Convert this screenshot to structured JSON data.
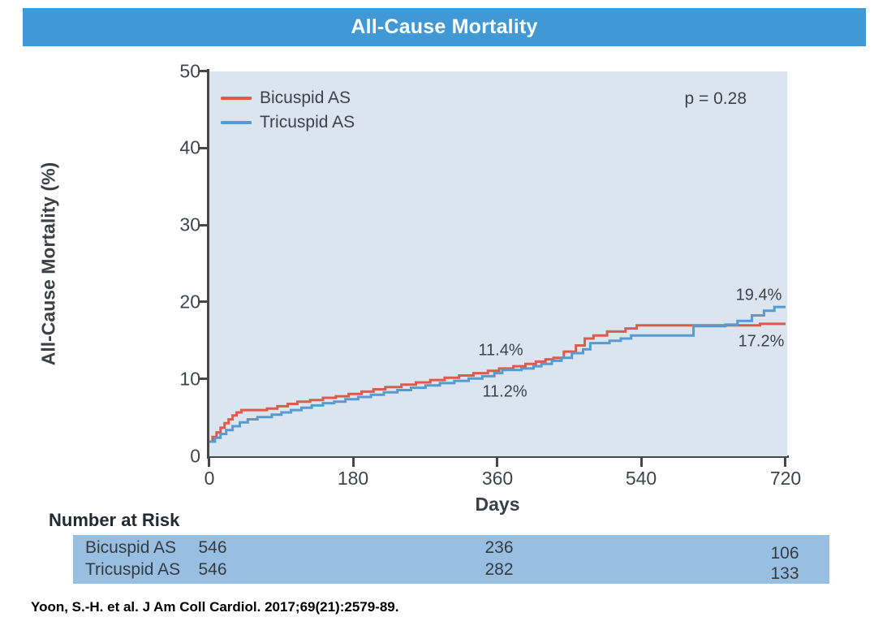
{
  "header": {
    "title": "All-Cause Mortality",
    "bg_color": "#4099d4"
  },
  "chart_data": {
    "type": "line",
    "subtype": "kaplan-meier-step",
    "title": "All-Cause Mortality",
    "xlabel": "Days",
    "ylabel": "All-Cause Mortality (%)",
    "xlim": [
      0,
      720
    ],
    "ylim": [
      0,
      50
    ],
    "x_ticks": [
      0,
      180,
      360,
      540,
      720
    ],
    "y_ticks": [
      0,
      10,
      20,
      30,
      40,
      50
    ],
    "grid": false,
    "legend_position": "top-left",
    "plot_bg_color": "#dbe5ef",
    "p_value_label": "p = 0.28",
    "series": [
      {
        "name": "Bicuspid AS",
        "color": "#e2594c",
        "points": [
          [
            0,
            1.9
          ],
          [
            4,
            2.5
          ],
          [
            9,
            3.1
          ],
          [
            14,
            3.7
          ],
          [
            19,
            4.3
          ],
          [
            24,
            4.8
          ],
          [
            29,
            5.3
          ],
          [
            34,
            5.7
          ],
          [
            40,
            6.0
          ],
          [
            72,
            6.2
          ],
          [
            85,
            6.5
          ],
          [
            98,
            6.8
          ],
          [
            110,
            7.1
          ],
          [
            126,
            7.3
          ],
          [
            142,
            7.6
          ],
          [
            158,
            7.8
          ],
          [
            174,
            8.1
          ],
          [
            190,
            8.4
          ],
          [
            205,
            8.7
          ],
          [
            220,
            9.0
          ],
          [
            240,
            9.3
          ],
          [
            258,
            9.6
          ],
          [
            276,
            9.9
          ],
          [
            294,
            10.2
          ],
          [
            312,
            10.5
          ],
          [
            330,
            10.8
          ],
          [
            348,
            11.1
          ],
          [
            362,
            11.4
          ],
          [
            380,
            11.7
          ],
          [
            395,
            12.0
          ],
          [
            408,
            12.3
          ],
          [
            420,
            12.6
          ],
          [
            430,
            12.8
          ],
          [
            443,
            13.6
          ],
          [
            458,
            14.4
          ],
          [
            469,
            15.3
          ],
          [
            480,
            15.7
          ],
          [
            497,
            16.2
          ],
          [
            520,
            16.6
          ],
          [
            534,
            17.0
          ],
          [
            688,
            17.2
          ],
          [
            720,
            17.2
          ]
        ]
      },
      {
        "name": "Tricuspid AS",
        "color": "#579ace",
        "points": [
          [
            0,
            1.9
          ],
          [
            7,
            2.4
          ],
          [
            14,
            2.9
          ],
          [
            21,
            3.4
          ],
          [
            29,
            3.9
          ],
          [
            38,
            4.4
          ],
          [
            48,
            4.8
          ],
          [
            60,
            5.1
          ],
          [
            78,
            5.4
          ],
          [
            90,
            5.7
          ],
          [
            102,
            6.0
          ],
          [
            115,
            6.3
          ],
          [
            128,
            6.6
          ],
          [
            142,
            6.9
          ],
          [
            156,
            7.1
          ],
          [
            170,
            7.4
          ],
          [
            186,
            7.7
          ],
          [
            202,
            8.0
          ],
          [
            218,
            8.3
          ],
          [
            235,
            8.6
          ],
          [
            252,
            8.9
          ],
          [
            270,
            9.2
          ],
          [
            288,
            9.5
          ],
          [
            306,
            9.8
          ],
          [
            324,
            10.1
          ],
          [
            341,
            10.4
          ],
          [
            356,
            10.8
          ],
          [
            366,
            11.2
          ],
          [
            390,
            11.4
          ],
          [
            405,
            11.7
          ],
          [
            415,
            12.0
          ],
          [
            428,
            12.4
          ],
          [
            440,
            12.8
          ],
          [
            453,
            13.4
          ],
          [
            467,
            13.9
          ],
          [
            476,
            14.7
          ],
          [
            500,
            15.0
          ],
          [
            514,
            15.3
          ],
          [
            527,
            15.7
          ],
          [
            605,
            16.9
          ],
          [
            645,
            17.1
          ],
          [
            660,
            17.6
          ],
          [
            678,
            18.3
          ],
          [
            693,
            18.9
          ],
          [
            706,
            19.4
          ],
          [
            720,
            19.4
          ]
        ]
      }
    ],
    "annotations": [
      {
        "text": "11.4%",
        "series": "Bicuspid AS",
        "day": 360
      },
      {
        "text": "11.2%",
        "series": "Tricuspid AS",
        "day": 360
      },
      {
        "text": "19.4%",
        "series": "Tricuspid AS",
        "day": 720
      },
      {
        "text": "17.2%",
        "series": "Bicuspid AS",
        "day": 720
      }
    ]
  },
  "risk_table": {
    "heading": "Number at Risk",
    "band_color": "#98bfe2",
    "columns_days": [
      0,
      360,
      720
    ],
    "rows": [
      {
        "label": "Bicuspid AS",
        "values": [
          "546",
          "236",
          "106"
        ]
      },
      {
        "label": "Tricuspid AS",
        "values": [
          "546",
          "282",
          "133"
        ]
      }
    ]
  },
  "citation": {
    "text": "Yoon, S.-H. et al. J Am Coll Cardiol. 2017;69(21):2579-89."
  }
}
